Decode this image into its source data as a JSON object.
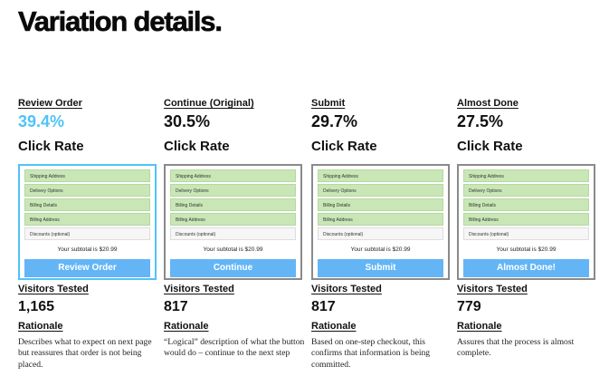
{
  "title": "Variation details.",
  "labels": {
    "metric": "Click Rate",
    "visitors": "Visitors Tested",
    "rationale": "Rationale",
    "subtotal": "Your subtotal is $20.99"
  },
  "form_fields": [
    "Shipping Address",
    "Delivery Options",
    "Billing Details",
    "Billing Address",
    "Discounts (optional)"
  ],
  "colors": {
    "winner_accent": "#4fc3f7",
    "button": "#64b5f6",
    "field_fill": "#c9e7b6"
  },
  "variations": [
    {
      "name": "Review Order",
      "rate": "39.4%",
      "button": "Review Order",
      "visitors": "1,165",
      "rationale": "Describes what to expect on next page but reassures that order is not being placed."
    },
    {
      "name": "Continue (Original)",
      "rate": "30.5%",
      "button": "Continue",
      "visitors": "817",
      "rationale": "“Logical” description of what the button would do – continue to the next step"
    },
    {
      "name": "Submit",
      "rate": "29.7%",
      "button": "Submit",
      "visitors": "817",
      "rationale": "Based on one-step checkout, this confirms that information is being committed."
    },
    {
      "name": "Almost Done",
      "rate": "27.5%",
      "button": "Almost Done!",
      "visitors": "779",
      "rationale": "Assures that the process is almost complete."
    }
  ]
}
